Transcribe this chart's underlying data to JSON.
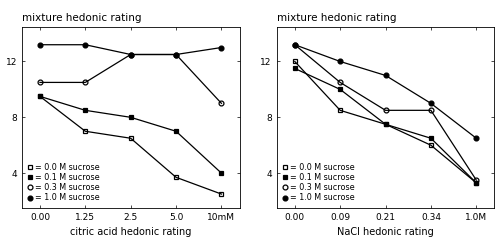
{
  "left": {
    "title": "mixture hedonic rating",
    "xlabel": "citric acid hedonic rating",
    "xtick_labels": [
      "0.00",
      "1.25",
      "2.5",
      "5.0",
      "10mM"
    ],
    "xtick_pos": [
      0,
      1,
      2,
      3,
      4
    ],
    "ylim": [
      1.5,
      14.5
    ],
    "yticks": [
      4,
      8,
      12
    ],
    "series": [
      {
        "label": "0.0 M sucrose",
        "marker": "s",
        "fillstyle": "none",
        "color": "black",
        "y": [
          9.5,
          7.0,
          6.5,
          3.7,
          2.5
        ]
      },
      {
        "label": "0.1 M sucrose",
        "marker": "s",
        "fillstyle": "full",
        "color": "black",
        "y": [
          9.5,
          8.5,
          8.0,
          7.0,
          4.0
        ]
      },
      {
        "label": "0.3 M sucrose",
        "marker": "o",
        "fillstyle": "none",
        "color": "black",
        "y": [
          10.5,
          10.5,
          12.5,
          12.5,
          9.0
        ]
      },
      {
        "label": "1.0 M sucrose",
        "marker": "o",
        "fillstyle": "full",
        "color": "black",
        "y": [
          13.2,
          13.2,
          12.5,
          12.5,
          13.0
        ]
      }
    ]
  },
  "right": {
    "title": "mixture hedonic rating",
    "xlabel": "NaCl hedonic rating",
    "xtick_labels": [
      "0.00",
      "0.09",
      "0.21",
      "0.34",
      "1.0M"
    ],
    "xtick_pos": [
      0,
      1,
      2,
      3,
      4
    ],
    "ylim": [
      1.5,
      14.5
    ],
    "yticks": [
      4,
      8,
      12
    ],
    "series": [
      {
        "label": "0.0 M sucrose",
        "marker": "s",
        "fillstyle": "none",
        "color": "black",
        "y": [
          12.0,
          8.5,
          7.5,
          6.0,
          3.3
        ]
      },
      {
        "label": "0.1 M sucrose",
        "marker": "s",
        "fillstyle": "full",
        "color": "black",
        "y": [
          11.5,
          10.0,
          7.5,
          6.5,
          3.3
        ]
      },
      {
        "label": "0.3 M sucrose",
        "marker": "o",
        "fillstyle": "none",
        "color": "black",
        "y": [
          13.2,
          10.5,
          8.5,
          8.5,
          3.5
        ]
      },
      {
        "label": "1.0 M sucrose",
        "marker": "o",
        "fillstyle": "full",
        "color": "black",
        "y": [
          13.2,
          12.0,
          11.0,
          9.0,
          6.5
        ]
      }
    ]
  },
  "legend_labels": [
    "= 0.0 M sucrose",
    "= 0.1 M sucrose",
    "= 0.3 M sucrose",
    "= 1.0 M sucrose"
  ],
  "title_fontsize": 7.5,
  "tick_fontsize": 6.5,
  "xlabel_fontsize": 7.0,
  "legend_fontsize": 5.8,
  "linewidth": 0.9,
  "markersize": 3.5,
  "markeredgewidth": 0.9
}
